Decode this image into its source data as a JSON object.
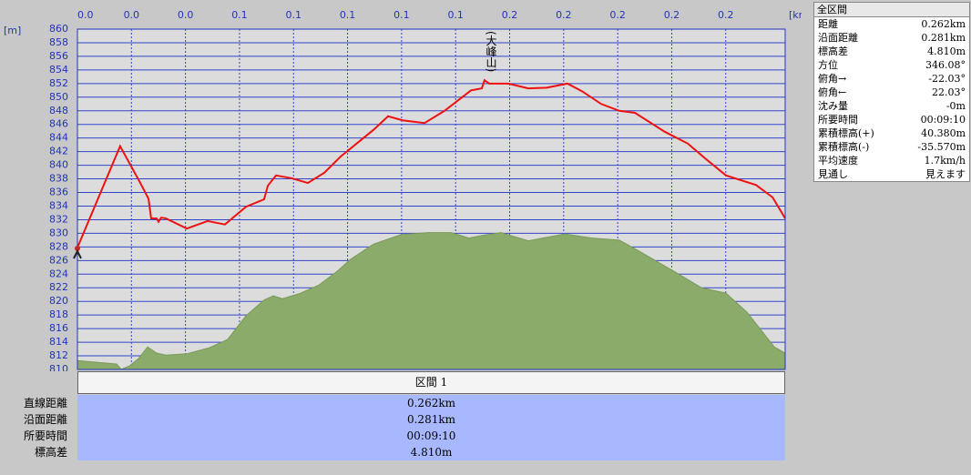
{
  "chart_data": {
    "type": "line",
    "x_unit": "[km]",
    "y_unit": "[m]",
    "xlim": [
      0,
      0.262
    ],
    "ylim": [
      810,
      860
    ],
    "xticks": [
      {
        "value": 0,
        "label": "0.0"
      },
      {
        "value": 0.02,
        "label": "0.0"
      },
      {
        "value": 0.04,
        "label": "0.0"
      },
      {
        "value": 0.06,
        "label": "0.1"
      },
      {
        "value": 0.08,
        "label": "0.1"
      },
      {
        "value": 0.1,
        "label": "0.1"
      },
      {
        "value": 0.12,
        "label": "0.1"
      },
      {
        "value": 0.14,
        "label": "0.1"
      },
      {
        "value": 0.16,
        "label": "0.2"
      },
      {
        "value": 0.18,
        "label": "0.2"
      },
      {
        "value": 0.2,
        "label": "0.2"
      },
      {
        "value": 0.22,
        "label": "0.2"
      },
      {
        "value": 0.24,
        "label": "0.2"
      }
    ],
    "yticks": [
      810,
      812,
      814,
      816,
      818,
      820,
      822,
      824,
      826,
      828,
      830,
      832,
      834,
      836,
      838,
      840,
      842,
      844,
      846,
      848,
      850,
      852,
      854,
      856,
      858,
      860
    ],
    "grid": true,
    "series": [
      {
        "color": "#8aab6a",
        "fill": true,
        "x": [
          0,
          0.0145,
          0.0162,
          0.0192,
          0.0226,
          0.026,
          0.0293,
          0.0327,
          0.0405,
          0.0489,
          0.0556,
          0.0624,
          0.0691,
          0.0725,
          0.0759,
          0.0826,
          0.0894,
          0.0961,
          0.1012,
          0.1096,
          0.1197,
          0.1298,
          0.1383,
          0.145,
          0.15,
          0.1568,
          0.1669,
          0.1804,
          0.1905,
          0.2006,
          0.2074,
          0.2209,
          0.231,
          0.2401,
          0.2479,
          0.258,
          0.262
        ],
        "values": [
          811.3,
          810.8,
          810.0,
          810.5,
          811.6,
          813.3,
          812.4,
          812.1,
          812.3,
          813.2,
          814.4,
          817.9,
          820.2,
          820.8,
          820.4,
          821.2,
          822.4,
          824.4,
          826.2,
          828.4,
          829.8,
          830.1,
          830.1,
          829.3,
          829.7,
          830.1,
          828.9,
          829.9,
          829.3,
          829.0,
          827.5,
          824.4,
          822.0,
          821.2,
          818.4,
          813.3,
          812.4
        ]
      },
      {
        "color": "#ee1111",
        "fill": false,
        "x": [
          0,
          0.0158,
          0.0226,
          0.0263,
          0.0273,
          0.0293,
          0.03,
          0.031,
          0.0327,
          0.0405,
          0.0482,
          0.0546,
          0.0624,
          0.0691,
          0.0705,
          0.0735,
          0.0792,
          0.0853,
          0.0914,
          0.0975,
          0.1096,
          0.115,
          0.1204,
          0.1285,
          0.1359,
          0.1457,
          0.1497,
          0.1507,
          0.1524,
          0.1595,
          0.1669,
          0.1737,
          0.1814,
          0.1871,
          0.1939,
          0.2006,
          0.2064,
          0.2175,
          0.2259,
          0.2327,
          0.2401,
          0.2512,
          0.2573,
          0.262
        ],
        "values": [
          827.9,
          842.8,
          837.9,
          835.1,
          832.2,
          832.2,
          831.7,
          832.3,
          832.2,
          830.7,
          831.8,
          831.3,
          833.9,
          835.0,
          837.0,
          838.5,
          838.1,
          837.4,
          838.9,
          841.3,
          845.2,
          847.2,
          846.6,
          846.2,
          848.0,
          851.0,
          851.3,
          852.5,
          852.0,
          852.0,
          851.3,
          851.4,
          852.0,
          850.8,
          849.0,
          848.0,
          847.7,
          844.9,
          843.2,
          840.9,
          838.5,
          837.1,
          835.3,
          832.2
        ]
      }
    ],
    "annotations": [
      {
        "text": "(大峰山)",
        "x": 0.1524
      }
    ]
  },
  "summary_panel": {
    "title": "全区間",
    "rows": [
      [
        "距離",
        "0.262km"
      ],
      [
        "沿面距離",
        "0.281km"
      ],
      [
        "標高差",
        "4.810m"
      ],
      [
        "方位",
        "346.08°"
      ],
      [
        "俯角→",
        "-22.03°"
      ],
      [
        "俯角←",
        "22.03°"
      ],
      [
        "沈み量",
        "-0m"
      ],
      [
        "所要時間",
        "00:09:10"
      ],
      [
        "累積標高(+)",
        "40.380m"
      ],
      [
        "累積標高(-)",
        "-35.570m"
      ],
      [
        "平均速度",
        "1.7km/h"
      ],
      [
        "見通し",
        "見えます"
      ]
    ]
  },
  "section_table": {
    "header": "区間 1",
    "rows": [
      [
        "直線距離",
        "0.262km"
      ],
      [
        "沿面距離",
        "0.281km"
      ],
      [
        "所要時間",
        "00:09:10"
      ],
      [
        "標高差",
        "4.810m"
      ]
    ]
  }
}
